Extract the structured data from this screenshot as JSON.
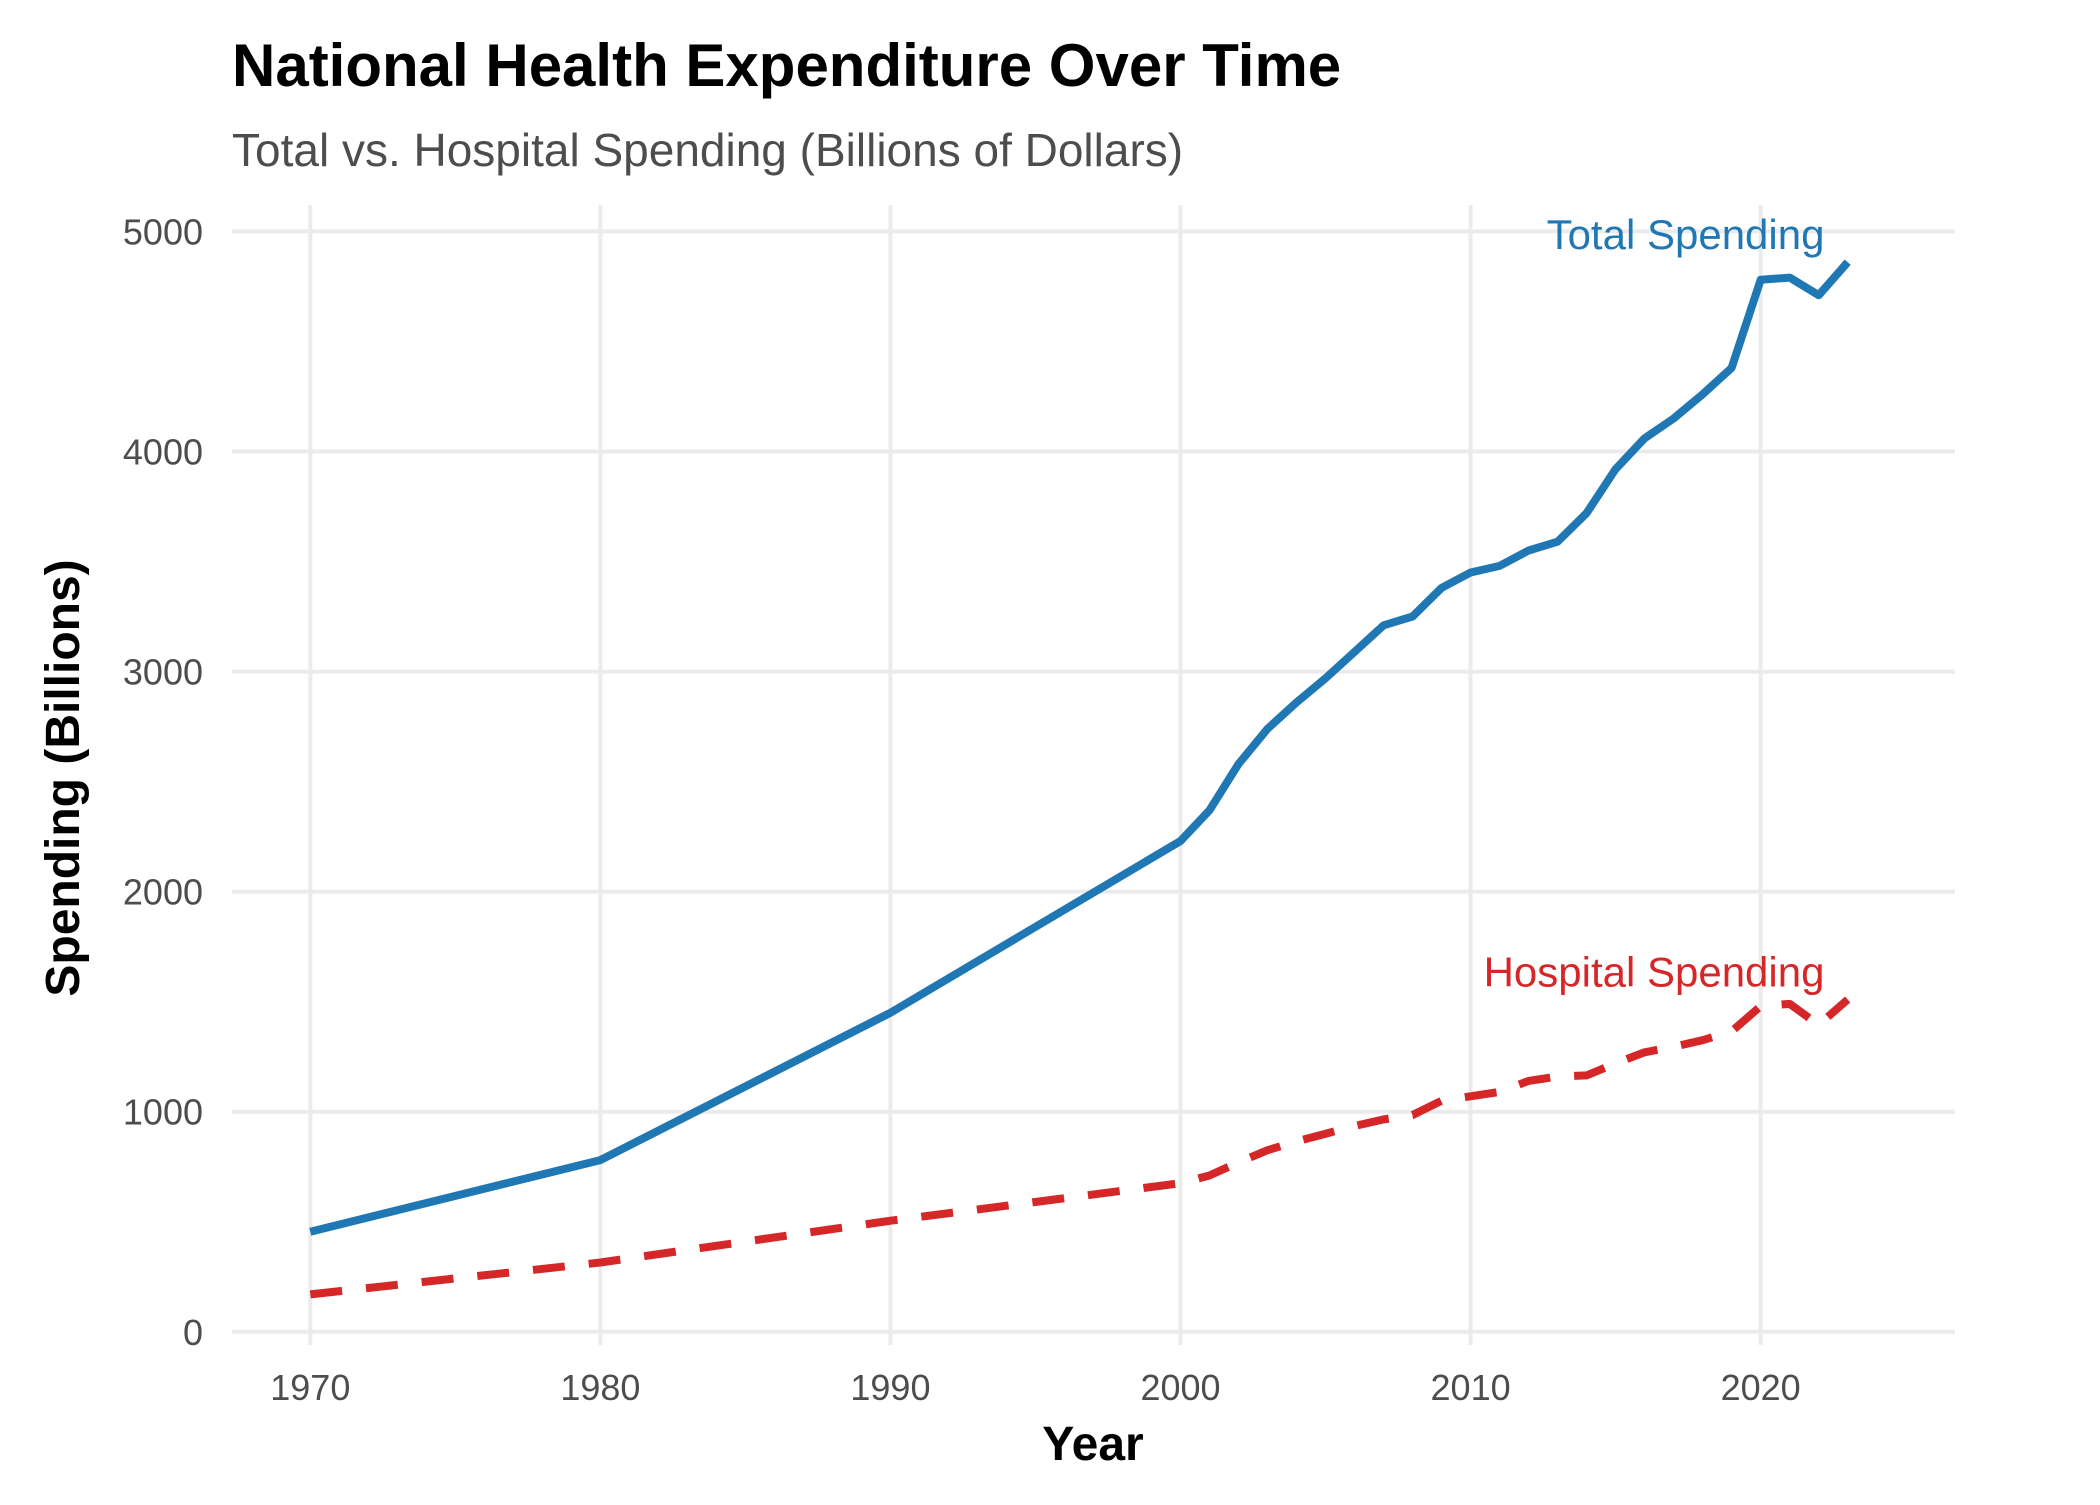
{
  "chart_data": {
    "type": "line",
    "title": "National Health Expenditure Over Time",
    "subtitle": "Total vs. Hospital Spending (Billions of Dollars)",
    "xlabel": "Year",
    "ylabel": "Spending (Billions)",
    "xlim": [
      1967.3,
      2026.7
    ],
    "ylim": [
      -60,
      5120
    ],
    "x_ticks": [
      1970,
      1980,
      1990,
      2000,
      2010,
      2020
    ],
    "x_tick_labels": [
      "1970",
      "1980",
      "1990",
      "2000",
      "2010",
      "2020"
    ],
    "y_ticks": [
      0,
      1000,
      2000,
      3000,
      4000,
      5000
    ],
    "y_tick_labels": [
      "0",
      "1000",
      "2000",
      "3000",
      "4000",
      "5000"
    ],
    "grid": true,
    "legend": "none",
    "series": [
      {
        "name": "Total Spending",
        "color": "#1f77b4",
        "line_style": "solid",
        "points": [
          [
            1970,
            455
          ],
          [
            1980,
            780
          ],
          [
            1990,
            1450
          ],
          [
            2000,
            2230
          ],
          [
            2001,
            2370
          ],
          [
            2002,
            2580
          ],
          [
            2003,
            2740
          ],
          [
            2004,
            2860
          ],
          [
            2005,
            2970
          ],
          [
            2006,
            3090
          ],
          [
            2007,
            3210
          ],
          [
            2008,
            3250
          ],
          [
            2009,
            3380
          ],
          [
            2010,
            3450
          ],
          [
            2011,
            3480
          ],
          [
            2012,
            3550
          ],
          [
            2013,
            3590
          ],
          [
            2014,
            3720
          ],
          [
            2015,
            3920
          ],
          [
            2016,
            4060
          ],
          [
            2017,
            4150
          ],
          [
            2018,
            4260
          ],
          [
            2019,
            4380
          ],
          [
            2020,
            4780
          ],
          [
            2021,
            4790
          ],
          [
            2022,
            4710
          ],
          [
            2023,
            4860
          ]
        ]
      },
      {
        "name": "Hospital Spending",
        "color": "#d62728",
        "line_style": "dashed",
        "points": [
          [
            1970,
            170
          ],
          [
            1980,
            315
          ],
          [
            1990,
            505
          ],
          [
            2000,
            675
          ],
          [
            2001,
            710
          ],
          [
            2002,
            770
          ],
          [
            2003,
            825
          ],
          [
            2004,
            865
          ],
          [
            2005,
            900
          ],
          [
            2006,
            935
          ],
          [
            2007,
            965
          ],
          [
            2008,
            985
          ],
          [
            2009,
            1050
          ],
          [
            2010,
            1070
          ],
          [
            2011,
            1090
          ],
          [
            2012,
            1140
          ],
          [
            2013,
            1160
          ],
          [
            2014,
            1165
          ],
          [
            2015,
            1220
          ],
          [
            2016,
            1270
          ],
          [
            2017,
            1295
          ],
          [
            2018,
            1325
          ],
          [
            2019,
            1365
          ],
          [
            2020,
            1480
          ],
          [
            2021,
            1490
          ],
          [
            2022,
            1395
          ],
          [
            2023,
            1510
          ]
        ]
      }
    ]
  }
}
